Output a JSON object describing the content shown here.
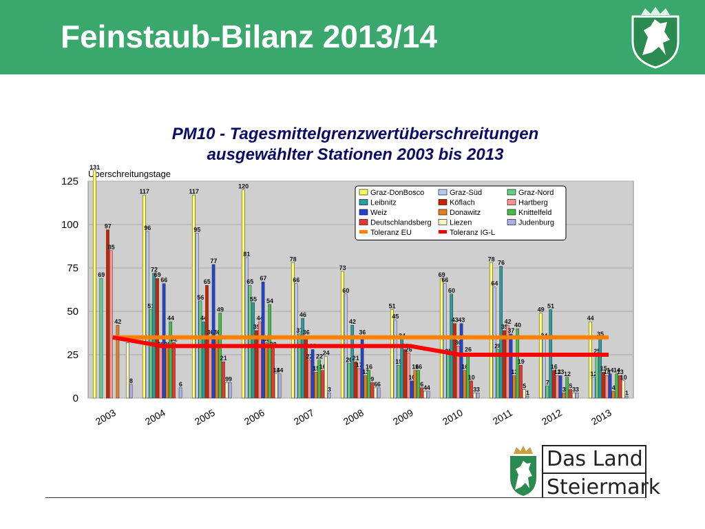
{
  "slide": {
    "title": "Feinstaub-Bilanz 2013/14",
    "logo_line1": "Das Land",
    "logo_line2": "Steiermark"
  },
  "colors": {
    "header_bg": "#3aa76d",
    "plot_bg": "#cfcfcf",
    "eu_line": "#ff8000",
    "igl_line": "#ff0000",
    "title_color": "#0b0b66"
  },
  "chart_data": {
    "type": "bar",
    "title_lines": [
      "PM10 - Tagesmittelgrenzwertüberschreitungen",
      "ausgewählter Stationen 2003 bis 2013"
    ],
    "ylabel": "Überschreitungstage",
    "ylim": [
      0,
      125
    ],
    "yticks": [
      "0",
      "25",
      "50",
      "75",
      "100",
      "125"
    ],
    "grid": true,
    "legend_position": "top-right",
    "categories": [
      "2003",
      "2004",
      "2005",
      "2006",
      "2007",
      "2008",
      "2009",
      "2010",
      "2011",
      "2012",
      "2013"
    ],
    "series": [
      {
        "name": "Graz-DonBosco",
        "color": "#ffff66",
        "values": [
          131,
          117,
          117,
          120,
          78,
          73,
          51,
          69,
          78,
          49,
          44
        ]
      },
      {
        "name": "Graz-Süd",
        "color": "#b8c8f0",
        "values": [
          null,
          96,
          95,
          81,
          66,
          60,
          45,
          66,
          64,
          34,
          12
        ]
      },
      {
        "name": "Graz-Nord",
        "color": "#66cc88",
        "values": [
          69,
          51,
          56,
          65,
          37,
          20,
          19,
          25,
          28,
          7,
          25
        ]
      },
      {
        "name": "Leibnitz",
        "color": "#2a9a9a",
        "values": [
          null,
          72,
          44,
          55,
          46,
          42,
          34,
          60,
          76,
          51,
          35
        ]
      },
      {
        "name": "Köflach",
        "color": "#cc2200",
        "values": [
          97,
          69,
          65,
          39,
          36,
          21,
          28,
          43,
          39,
          16,
          15
        ]
      },
      {
        "name": "Hartberg",
        "color": "#ff9090",
        "values": [
          85,
          29,
          36,
          44,
          22,
          17,
          26,
          30,
          42,
          13,
          13
        ]
      },
      {
        "name": "Weiz",
        "color": "#2244cc",
        "values": [
          null,
          66,
          77,
          67,
          28,
          36,
          10,
          43,
          37,
          13,
          14
        ]
      },
      {
        "name": "Donawitz",
        "color": "#e08020",
        "values": [
          42,
          29,
          36,
          32,
          15,
          13,
          16,
          16,
          13,
          3,
          4
        ]
      },
      {
        "name": "Knittelfeld",
        "color": "#44bb44",
        "values": [
          null,
          44,
          49,
          54,
          22,
          16,
          16,
          26,
          40,
          12,
          14
        ]
      },
      {
        "name": "Deutschlandsberg",
        "color": "#ee3333",
        "values": [
          null,
          32,
          21,
          29,
          16,
          9,
          6,
          10,
          19,
          5,
          13
        ]
      },
      {
        "name": "Liezen",
        "color": "#f4f4c0",
        "values": [
          32,
          null,
          9,
          14,
          24,
          6,
          4,
          3,
          5,
          3,
          10
        ]
      },
      {
        "name": "Judenburg",
        "color": "#a8b0e8",
        "values": [
          8,
          6,
          9,
          14,
          3,
          6,
          4,
          3,
          1,
          3,
          1
        ]
      }
    ],
    "lines": [
      {
        "name": "Toleranz EU",
        "color": "#ff8000",
        "values": [
          35,
          35,
          35,
          35,
          35,
          35,
          35,
          35,
          35,
          35,
          35
        ]
      },
      {
        "name": "Toleranz IG-L",
        "color": "#ff0000",
        "values": [
          35,
          30,
          30,
          30,
          30,
          30,
          30,
          25,
          25,
          25,
          25
        ]
      }
    ]
  }
}
